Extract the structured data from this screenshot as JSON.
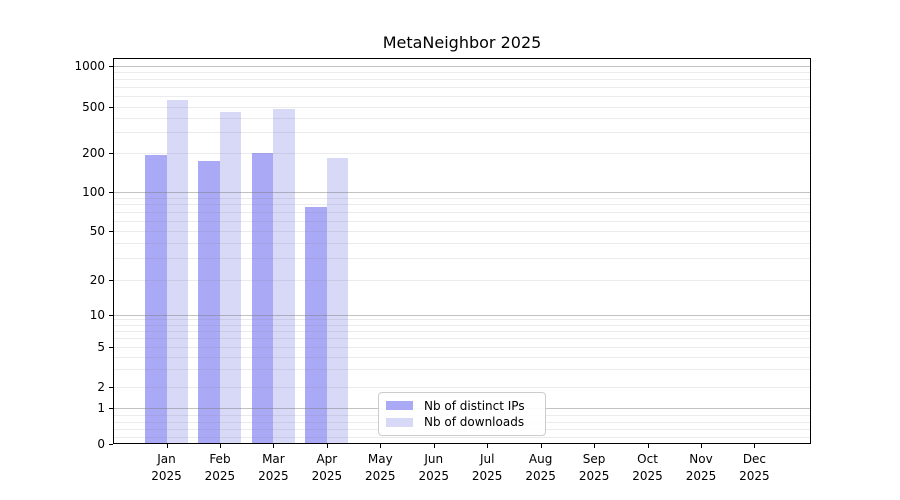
{
  "chart_data": {
    "type": "bar",
    "title": "MetaNeighbor 2025",
    "x_months": [
      "Jan",
      "Feb",
      "Mar",
      "Apr",
      "May",
      "Jun",
      "Jul",
      "Aug",
      "Sep",
      "Oct",
      "Nov",
      "Dec"
    ],
    "x_year": "2025",
    "y_scale": "symlog",
    "y_ticks": [
      0,
      1,
      2,
      5,
      10,
      20,
      50,
      100,
      200,
      500,
      1000
    ],
    "ylim": [
      0,
      1100
    ],
    "grid": "horizontal, major (powers of 10) + faint minor lines",
    "legend_position": "inside, lower center",
    "series": [
      {
        "name": "Nb of distinct IPs",
        "color": "#a9a9f5",
        "values": [
          190,
          173,
          200,
          76,
          0,
          0,
          0,
          0,
          0,
          0,
          0,
          0
        ]
      },
      {
        "name": "Nb of downloads",
        "color": "#d8d8f7",
        "values": [
          555,
          445,
          475,
          180,
          0,
          0,
          0,
          0,
          0,
          0,
          0,
          0
        ]
      }
    ]
  }
}
